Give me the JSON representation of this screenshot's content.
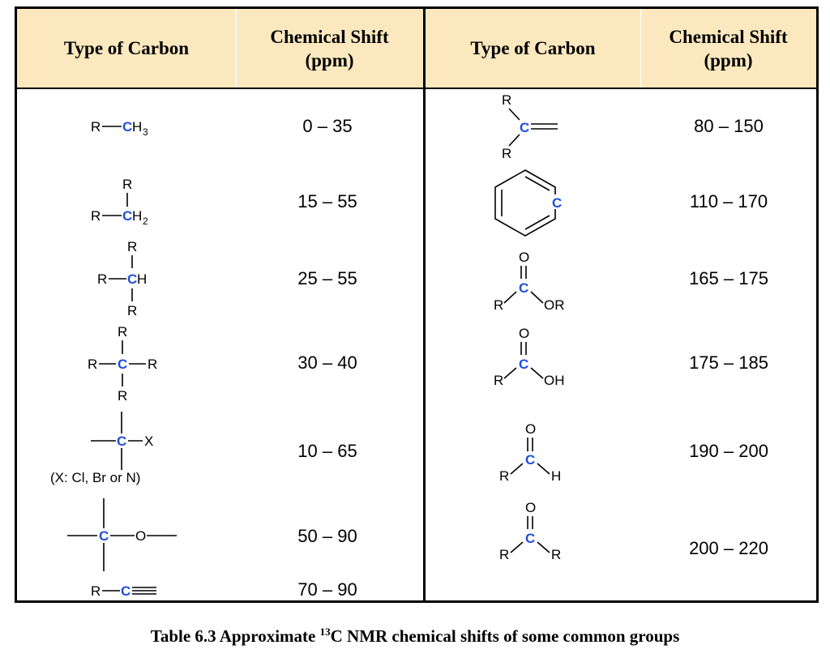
{
  "table": {
    "headers": {
      "type_left": "Type of Carbon",
      "shift_left_line1": "Chemical Shift",
      "shift_left_line2": "(ppm)",
      "type_right": "Type of Carbon",
      "shift_right_line1": "Chemical Shift",
      "shift_right_line2": "(ppm)"
    },
    "left_rows": [
      {
        "shift": "0 – 35"
      },
      {
        "shift": "15 – 55"
      },
      {
        "shift": "25 – 55"
      },
      {
        "shift": "30 – 40"
      },
      {
        "shift": "10 – 65",
        "note": "(X: Cl, Br or N)"
      },
      {
        "shift": "50 – 90"
      },
      {
        "shift": "70 – 90"
      }
    ],
    "right_rows": [
      {
        "shift": "80 – 150"
      },
      {
        "shift": "110 – 170"
      },
      {
        "shift": "165 – 175"
      },
      {
        "shift": "175 – 185"
      },
      {
        "shift": "190 – 200"
      },
      {
        "shift": "200 – 220"
      }
    ]
  },
  "labels": {
    "R": "R",
    "C": "C",
    "H": "H",
    "CH": "CH",
    "X": "X",
    "O": "O",
    "OR": "OR",
    "OH": "OH",
    "H3": "3",
    "H2": "2",
    "CH_sym": "H"
  },
  "caption": {
    "prefix": "Table 6.3 Approximate ",
    "sup": "13",
    "suffix": "C NMR chemical shifts of some common groups"
  },
  "colors": {
    "header_bg": "#fbe8be",
    "carbon_highlight": "#1f4fe0"
  }
}
